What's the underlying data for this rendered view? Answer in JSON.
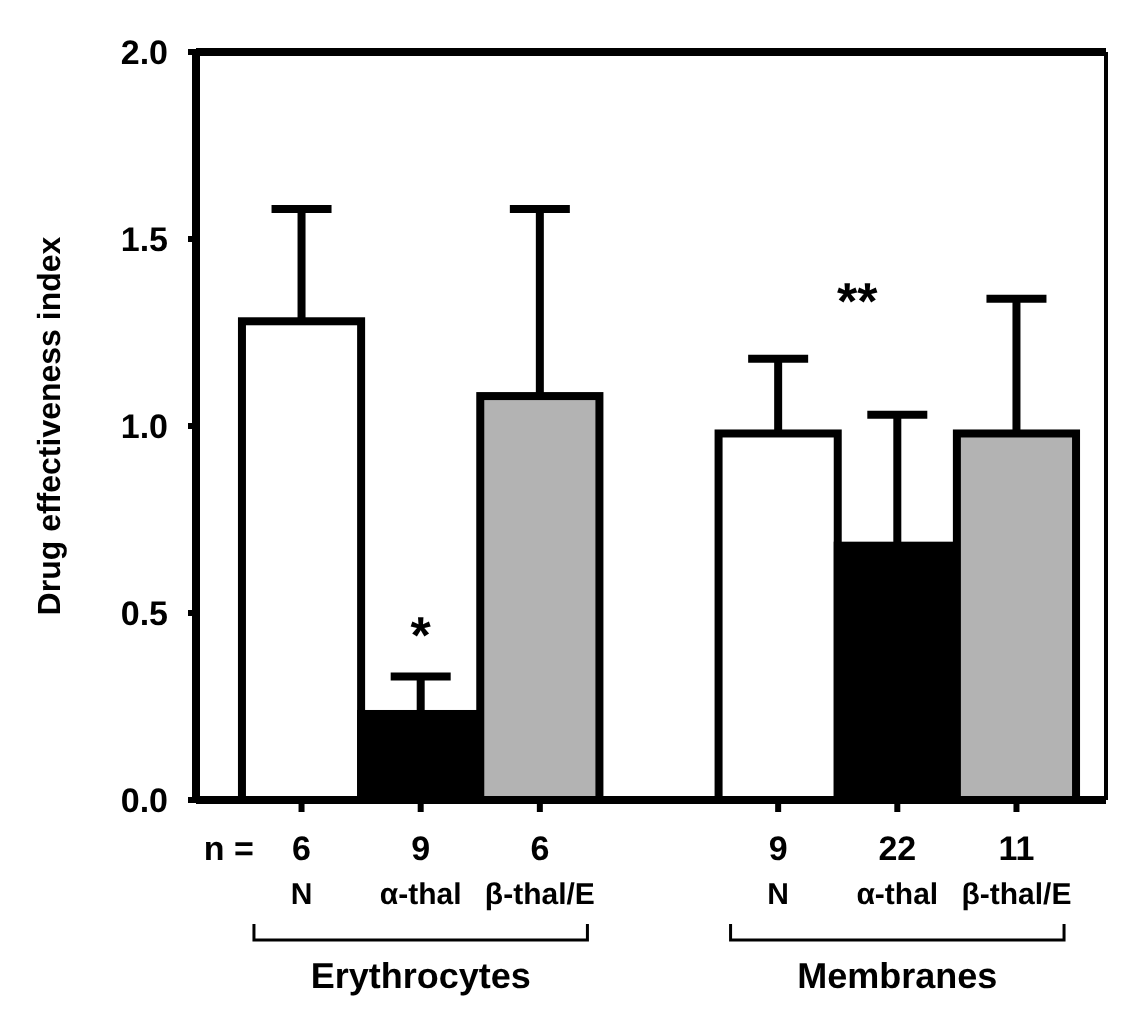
{
  "chart_data": {
    "type": "bar",
    "ylabel": "Drug effectiveness index",
    "categories": [
      "6\nN",
      "9\nα-thal",
      "6\nβ-thal/E",
      null,
      "9\nN",
      "22\nα-thal",
      "11\nβ-thal/E"
    ],
    "values": [
      1.28,
      0.23,
      1.08,
      null,
      0.98,
      0.68,
      0.98
    ],
    "colors": [
      "#ffffff",
      "#000000",
      "#b3b3b3",
      null,
      "#ffffff",
      "#000000",
      "#b3b3b3"
    ],
    "errors": [
      [
        1.28,
        1.58
      ],
      [
        0.23,
        0.33
      ],
      [
        1.08,
        1.58
      ],
      null,
      [
        0.98,
        1.18
      ],
      [
        0.68,
        1.03
      ],
      [
        0.98,
        1.34
      ]
    ],
    "ylim": [
      0,
      2
    ],
    "yticks": [
      {
        "value": 0,
        "label": "0.0"
      },
      {
        "value": 0.5,
        "label": "0.5"
      },
      {
        "value": 1,
        "label": "1.0"
      },
      {
        "value": 1.5,
        "label": "1.5"
      },
      {
        "value": 2,
        "label": "2.0"
      }
    ],
    "annotations": [
      "n =",
      "Erythrocytes",
      "Membranes",
      "*",
      "**"
    ]
  }
}
